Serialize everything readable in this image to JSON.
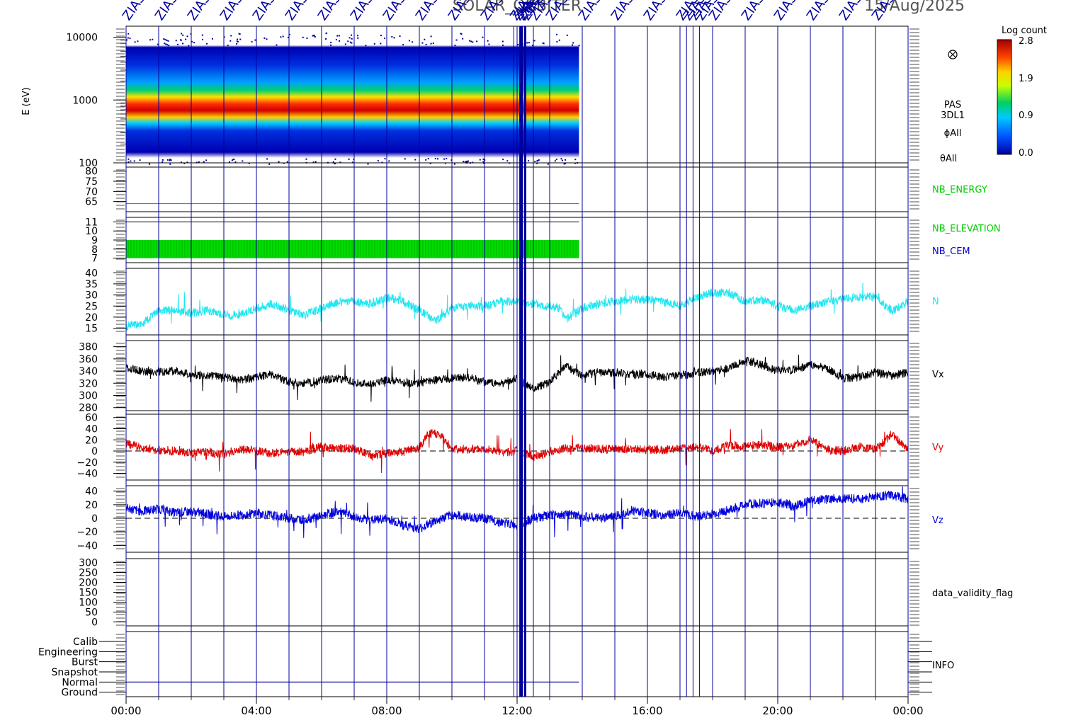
{
  "header": {
    "title": "SOLAR_ORBITER",
    "date": "15/Aug/2025",
    "event_label": "ZIAS"
  },
  "colorbar": {
    "title": "Log count",
    "ticks": [
      "2.8",
      "1.9",
      "0.9",
      "0.0"
    ]
  },
  "side_labels": {
    "panel1": [
      "PAS",
      "3DL1",
      "ϕAll",
      "θAll"
    ],
    "panel1_symbol": "circle-x-icon",
    "nb_energy": "NB_ENERGY",
    "nb_elevation": "NB_ELEVATION",
    "nb_cem": "NB_CEM",
    "n": "N",
    "vx": "Vx",
    "vy": "Vy",
    "vz": "Vz",
    "validity": "data_validity_flag",
    "info": "INFO"
  },
  "colors": {
    "frame": "#000000",
    "event_lines": "#00009c",
    "nb_energy": "#00cc00",
    "nb_elevation": "#00dd00",
    "nb_cem": "#0000cc",
    "n": "#22e6f0",
    "vx": "#000000",
    "vy": "#e00000",
    "vz": "#0000dd",
    "info": "#00009c"
  },
  "chart_data": [
    {
      "type": "heatmap",
      "name": "PAS energy spectrogram",
      "ylabel": "E (eV)",
      "yscale": "log",
      "ylim": [
        100,
        15000
      ],
      "yticks": [
        "10000",
        "1000",
        "100"
      ],
      "data_end_hour": 13.9,
      "peak_energy_eV": 650,
      "color_range": [
        0.0,
        2.8
      ]
    },
    {
      "type": "line",
      "name": "NB_ENERGY",
      "yticks": [
        "80",
        "75",
        "70",
        "65"
      ],
      "ylim": [
        60,
        82
      ],
      "value": 64,
      "data_end_hour": 13.9
    },
    {
      "type": "bar",
      "name": "NB_ELEVATION",
      "yticks": [
        "11",
        "10",
        "9",
        "8",
        "7"
      ],
      "ylim": [
        6.5,
        11.5
      ],
      "range": [
        7,
        9
      ],
      "data_end_hour": 13.9
    },
    {
      "type": "line",
      "name": "N",
      "yticks": [
        "40",
        "35",
        "30",
        "25",
        "20",
        "15"
      ],
      "ylim": [
        12,
        42
      ],
      "x": [
        0,
        0.5,
        1,
        1.5,
        2,
        2.5,
        3,
        3.5,
        4,
        4.5,
        5,
        5.5,
        6,
        6.5,
        7,
        7.5,
        8,
        8.5,
        9,
        9.5,
        10,
        10.5,
        11,
        11.5,
        12,
        12.5,
        13,
        13.3,
        13.5,
        14,
        14.5,
        15,
        15.5,
        16,
        16.5,
        17,
        17.5,
        18,
        18.5,
        19,
        19.5,
        20,
        20.5,
        21,
        21.5,
        22,
        22.5,
        23,
        23.5,
        24
      ],
      "y": [
        16,
        17,
        23,
        23,
        22,
        23,
        21,
        21,
        24,
        26,
        23,
        21,
        24,
        27,
        27,
        26,
        29,
        27,
        23,
        18,
        24,
        25,
        25,
        27,
        27,
        26,
        25,
        24,
        19,
        24,
        26,
        27,
        28,
        28,
        27,
        25,
        29,
        31,
        31,
        27,
        28,
        25,
        23,
        25,
        27,
        28,
        29,
        29,
        23,
        27
      ]
    },
    {
      "type": "line",
      "name": "Vx",
      "yticks": [
        "380",
        "360",
        "340",
        "320",
        "300",
        "280"
      ],
      "ylim": [
        275,
        390
      ],
      "x": [
        0,
        0.5,
        1,
        1.5,
        2,
        2.5,
        3,
        3.5,
        4,
        4.5,
        5,
        5.5,
        6,
        6.5,
        7,
        7.5,
        8,
        8.5,
        9,
        9.5,
        10,
        10.5,
        11,
        11.5,
        12,
        12.5,
        13,
        13.5,
        14,
        14.5,
        15,
        15.5,
        16,
        16.5,
        17,
        17.5,
        18,
        18.5,
        19,
        19.5,
        20,
        20.5,
        21,
        21.5,
        22,
        22.5,
        23,
        23.5,
        24
      ],
      "y": [
        345,
        340,
        338,
        340,
        334,
        333,
        330,
        325,
        330,
        335,
        322,
        320,
        325,
        328,
        322,
        318,
        326,
        322,
        320,
        325,
        328,
        330,
        322,
        320,
        328,
        310,
        322,
        348,
        332,
        338,
        337,
        335,
        335,
        330,
        332,
        337,
        340,
        344,
        358,
        350,
        340,
        342,
        350,
        345,
        328,
        330,
        338,
        332,
        338
      ],
      "gap": [
        12,
        12.2
      ]
    },
    {
      "type": "line",
      "name": "Vy",
      "yticks": [
        "60",
        "40",
        "20",
        "0",
        "−20",
        "−40"
      ],
      "ylim": [
        -52,
        66
      ],
      "zero_line": true,
      "x": [
        0,
        0.5,
        1,
        1.5,
        2,
        2.5,
        3,
        3.5,
        4,
        4.5,
        5,
        5.5,
        6,
        6.5,
        7,
        7.5,
        8,
        8.5,
        9,
        9.25,
        9.5,
        9.75,
        10,
        10.5,
        11,
        11.5,
        12,
        12.5,
        13,
        13.5,
        14,
        14.5,
        15,
        15.5,
        16,
        16.5,
        17,
        17.5,
        18,
        18.5,
        19,
        19.5,
        20,
        20.5,
        21,
        21.5,
        22,
        22.5,
        23,
        23.5,
        24
      ],
      "y": [
        14,
        5,
        2,
        0,
        -4,
        -2,
        -6,
        4,
        0,
        -4,
        -2,
        0,
        8,
        5,
        4,
        -8,
        -4,
        -2,
        6,
        30,
        32,
        22,
        4,
        2,
        5,
        -3,
        0,
        -10,
        -2,
        5,
        5,
        4,
        3,
        4,
        3,
        2,
        5,
        8,
        0,
        10,
        8,
        12,
        7,
        10,
        20,
        3,
        0,
        8,
        3,
        30,
        3
      ],
      "gap": [
        12,
        12.2
      ]
    },
    {
      "type": "line",
      "name": "Vz",
      "yticks": [
        "40",
        "20",
        "0",
        "−20",
        "−40"
      ],
      "ylim": [
        -50,
        48
      ],
      "zero_line": true,
      "x": [
        0,
        0.5,
        1,
        1.5,
        2,
        2.5,
        3,
        3.5,
        4,
        4.5,
        5,
        5.5,
        6,
        6.5,
        7,
        7.5,
        8,
        8.5,
        9,
        9.5,
        10,
        10.5,
        11,
        11.5,
        12,
        12.5,
        13,
        13.5,
        14,
        14.5,
        15,
        15.5,
        16,
        16.5,
        17,
        17.5,
        18,
        18.5,
        19,
        19.5,
        20,
        20.5,
        21,
        21.5,
        22,
        22.5,
        23,
        23.5,
        24
      ],
      "y": [
        15,
        10,
        14,
        8,
        10,
        6,
        2,
        5,
        8,
        4,
        0,
        -2,
        4,
        10,
        2,
        -3,
        0,
        -10,
        -15,
        -4,
        5,
        2,
        0,
        -6,
        -10,
        0,
        4,
        6,
        3,
        0,
        3,
        12,
        8,
        4,
        8,
        3,
        6,
        12,
        20,
        22,
        24,
        18,
        26,
        28,
        30,
        28,
        32,
        34,
        28
      ],
      "gap": [
        12,
        12.2
      ]
    },
    {
      "type": "line",
      "name": "data_validity_flag",
      "yticks": [
        "300",
        "250",
        "200",
        "150",
        "100",
        "50",
        "0"
      ],
      "ylim": [
        -20,
        320
      ]
    },
    {
      "type": "line",
      "name": "INFO",
      "categories": [
        "Calib",
        "Engineering",
        "Burst",
        "Snapshot",
        "Normal",
        "Ground"
      ],
      "mode": "Normal",
      "data_end_hour": 13.9
    }
  ],
  "time_axis": {
    "range_hours": [
      0,
      24
    ],
    "tick_labels": [
      "00:00",
      "04:00",
      "08:00",
      "12:00",
      "16:00",
      "20:00",
      "00:00"
    ],
    "event_hours": [
      0,
      1,
      2,
      3,
      4,
      5,
      6,
      7,
      8,
      9,
      10,
      11,
      11.9,
      12.0,
      12.1,
      12.15,
      12.25,
      12.5,
      13,
      14,
      15,
      16,
      17,
      17.2,
      17.4,
      17.6,
      18,
      19,
      20,
      21,
      22,
      23,
      24
    ]
  }
}
